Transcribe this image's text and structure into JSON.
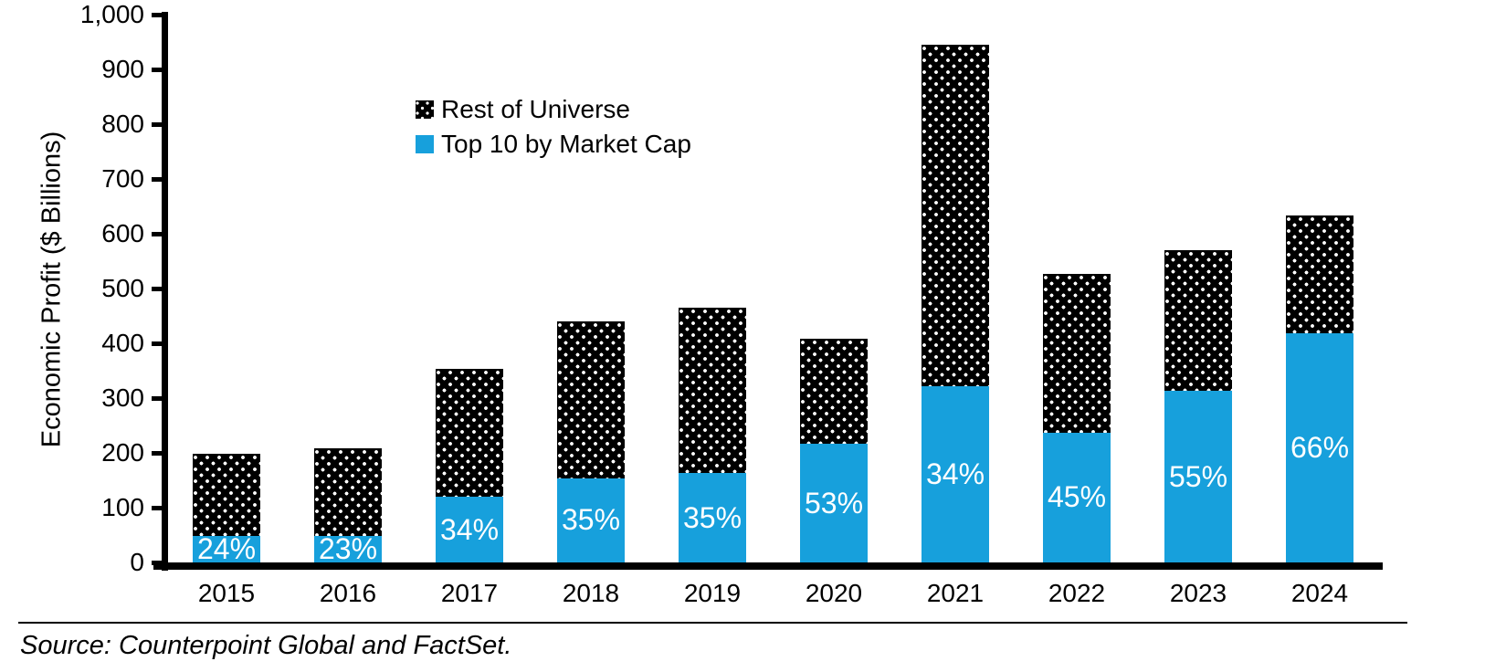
{
  "source_note": "Source: Counterpoint Global and FactSet.",
  "chart_data": {
    "type": "bar",
    "stacked": true,
    "title": "",
    "xlabel": "",
    "ylabel": "Economic Profit ($ Billions)",
    "ylim": [
      0,
      1000
    ],
    "ytick_interval": 100,
    "ytick_labels": [
      "0",
      "100",
      "200",
      "300",
      "400",
      "500",
      "600",
      "700",
      "800",
      "900",
      "1,000"
    ],
    "grid": false,
    "axis_color": "#000000",
    "categories": [
      "2015",
      "2016",
      "2017",
      "2018",
      "2019",
      "2020",
      "2021",
      "2022",
      "2023",
      "2024"
    ],
    "series": [
      {
        "name": "Top 10 by Market Cap",
        "color": "#17A0DC",
        "values": [
          48,
          48,
          120,
          154,
          163,
          216,
          321,
          237,
          313,
          418
        ]
      },
      {
        "name": "Rest of Universe",
        "color": "#000000",
        "pattern": "white-dots-on-black",
        "values": [
          150,
          160,
          233,
          286,
          302,
          192,
          624,
          290,
          257,
          215
        ]
      }
    ],
    "totals": [
      198,
      208,
      353,
      440,
      465,
      408,
      945,
      527,
      570,
      633
    ],
    "bar_labels": {
      "series": "Top 10 by Market Cap",
      "color": "#ffffff",
      "values": [
        "24%",
        "23%",
        "34%",
        "35%",
        "35%",
        "53%",
        "34%",
        "45%",
        "55%",
        "66%"
      ]
    },
    "legend": {
      "position": "inside-top-left",
      "entries": [
        "Rest of Universe",
        "Top 10 by Market Cap"
      ]
    }
  }
}
